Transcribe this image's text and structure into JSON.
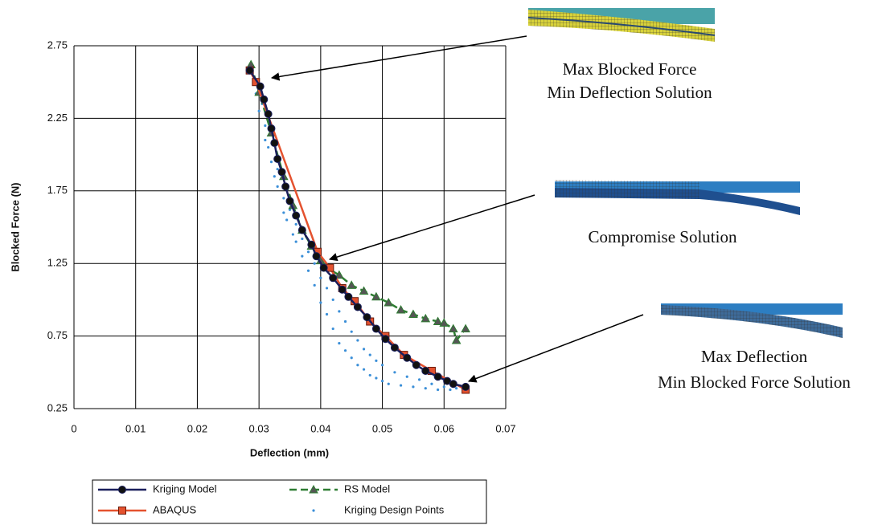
{
  "chart_data": {
    "type": "line",
    "xlabel": "Deflection (mm)",
    "ylabel": "Blocked Force (N)",
    "xlim": [
      0,
      0.07
    ],
    "xticks": [
      0,
      0.01,
      0.02,
      0.03,
      0.04,
      0.05,
      0.06,
      0.07
    ],
    "ylim": [
      0.25,
      2.75
    ],
    "yticks": [
      0.25,
      0.75,
      1.25,
      1.75,
      2.25,
      2.75
    ],
    "grid": true,
    "series": [
      {
        "name": "Kriging Design Points",
        "color": "#3b8fd8",
        "marker": "dot",
        "line": false,
        "x": [
          0.0295,
          0.03,
          0.0305,
          0.031,
          0.031,
          0.0315,
          0.032,
          0.0325,
          0.033,
          0.033,
          0.034,
          0.034,
          0.0345,
          0.035,
          0.0355,
          0.036,
          0.036,
          0.037,
          0.037,
          0.038,
          0.038,
          0.039,
          0.039,
          0.04,
          0.04,
          0.041,
          0.041,
          0.042,
          0.042,
          0.043,
          0.043,
          0.044,
          0.044,
          0.045,
          0.045,
          0.046,
          0.046,
          0.047,
          0.047,
          0.048,
          0.048,
          0.049,
          0.049,
          0.05,
          0.05,
          0.051,
          0.052,
          0.053,
          0.054,
          0.055,
          0.056,
          0.057,
          0.058,
          0.059,
          0.06,
          0.061,
          0.062
        ],
        "values": [
          2.42,
          2.3,
          2.35,
          2.2,
          2.1,
          2.05,
          1.95,
          1.85,
          1.9,
          1.78,
          1.7,
          1.6,
          1.55,
          1.62,
          1.45,
          1.4,
          1.52,
          1.3,
          1.42,
          1.2,
          1.33,
          1.1,
          1.25,
          0.98,
          1.15,
          0.9,
          1.08,
          0.8,
          1.0,
          0.7,
          0.92,
          0.65,
          0.85,
          0.6,
          0.78,
          0.55,
          0.72,
          0.52,
          0.66,
          0.48,
          0.62,
          0.46,
          0.58,
          0.44,
          0.55,
          0.42,
          0.5,
          0.41,
          0.47,
          0.4,
          0.45,
          0.39,
          0.42,
          0.38,
          0.4,
          0.38,
          0.39
        ]
      },
      {
        "name": "RS Model",
        "color": "#2e7d32",
        "marker": "triangle",
        "line": true,
        "dash": true,
        "x": [
          0.0287,
          0.03,
          0.032,
          0.034,
          0.0355,
          0.037,
          0.0385,
          0.04,
          0.041,
          0.043,
          0.045,
          0.047,
          0.049,
          0.051,
          0.053,
          0.055,
          0.057,
          0.059,
          0.06,
          0.0615,
          0.062,
          0.0635
        ],
        "values": [
          2.62,
          2.43,
          2.15,
          1.85,
          1.65,
          1.48,
          1.37,
          1.27,
          1.22,
          1.17,
          1.1,
          1.06,
          1.02,
          0.98,
          0.93,
          0.9,
          0.87,
          0.85,
          0.84,
          0.8,
          0.72,
          0.8
        ]
      },
      {
        "name": "ABAQUS",
        "color": "#e4522f",
        "marker": "square",
        "line": true,
        "dash": false,
        "x": [
          0.0285,
          0.0295,
          0.0395,
          0.0415,
          0.0435,
          0.0455,
          0.048,
          0.0505,
          0.0535,
          0.058,
          0.0635
        ],
        "values": [
          2.58,
          2.5,
          1.33,
          1.22,
          1.08,
          0.99,
          0.85,
          0.75,
          0.62,
          0.51,
          0.38
        ]
      },
      {
        "name": "Kriging Model",
        "color": "#1a1f5c",
        "marker": "circle",
        "line": true,
        "dash": false,
        "x": [
          0.0285,
          0.0302,
          0.0308,
          0.0315,
          0.032,
          0.0325,
          0.033,
          0.0337,
          0.0343,
          0.035,
          0.036,
          0.037,
          0.0385,
          0.0393,
          0.0405,
          0.042,
          0.0435,
          0.0445,
          0.046,
          0.0475,
          0.049,
          0.0505,
          0.052,
          0.054,
          0.0555,
          0.057,
          0.059,
          0.0605,
          0.0615,
          0.0635
        ],
        "values": [
          2.58,
          2.47,
          2.38,
          2.28,
          2.18,
          2.08,
          1.97,
          1.88,
          1.78,
          1.68,
          1.58,
          1.48,
          1.38,
          1.3,
          1.22,
          1.15,
          1.07,
          1.02,
          0.95,
          0.88,
          0.8,
          0.73,
          0.67,
          0.6,
          0.55,
          0.51,
          0.47,
          0.44,
          0.42,
          0.4
        ]
      }
    ],
    "annotations": [
      "Max Blocked Force",
      "Min Deflection Solution",
      "Compromise Solution",
      "Max Deflection",
      "Min Blocked Force Solution"
    ]
  }
}
